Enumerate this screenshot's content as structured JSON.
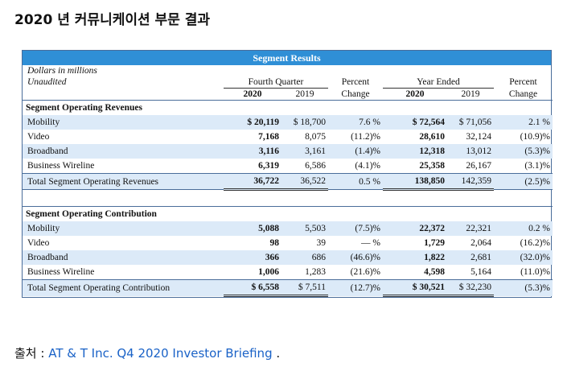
{
  "title": "2020 년 커뮤니케이션 부문 결과",
  "table": {
    "caption": "Segment Results",
    "header": {
      "left": [
        "Dollars in millions",
        "Unaudited"
      ],
      "fourth_quarter": "Fourth Quarter",
      "year_ended": "Year Ended",
      "percent": "Percent",
      "change": "Change",
      "years": [
        "2020",
        "2019"
      ]
    },
    "sections": [
      {
        "heading": "Segment Operating Revenues",
        "rows": [
          {
            "label": "Mobility",
            "values": [
              "$ 20,119",
              "$ 18,700",
              "7.6 %",
              "$ 72,564",
              "$ 71,056",
              "2.1 %"
            ]
          },
          {
            "label": "Video",
            "values": [
              "7,168",
              "8,075",
              "(11.2)%",
              "28,610",
              "32,124",
              "(10.9)%"
            ]
          },
          {
            "label": "Broadband",
            "values": [
              "3,116",
              "3,161",
              "(1.4)%",
              "12,318",
              "13,012",
              "(5.3)%"
            ]
          },
          {
            "label": "Business Wireline",
            "values": [
              "6,319",
              "6,586",
              "(4.1)%",
              "25,358",
              "26,167",
              "(3.1)%"
            ]
          }
        ],
        "total": {
          "label": "Total Segment Operating Revenues",
          "values": [
            "36,722",
            "36,522",
            "0.5 %",
            "138,850",
            "142,359",
            "(2.5)%"
          ]
        }
      },
      {
        "heading": "Segment Operating Contribution",
        "rows": [
          {
            "label": "Mobility",
            "values": [
              "5,088",
              "5,503",
              "(7.5)%",
              "22,372",
              "22,321",
              "0.2 %"
            ]
          },
          {
            "label": "Video",
            "values": [
              "98",
              "39",
              "— %",
              "1,729",
              "2,064",
              "(16.2)%"
            ]
          },
          {
            "label": "Broadband",
            "values": [
              "366",
              "686",
              "(46.6)%",
              "1,822",
              "2,681",
              "(32.0)%"
            ]
          },
          {
            "label": "Business Wireline",
            "values": [
              "1,006",
              "1,283",
              "(21.6)%",
              "4,598",
              "5,164",
              "(11.0)%"
            ]
          }
        ],
        "total": {
          "label": "Total Segment Operating Contribution",
          "values": [
            "$ 6,558",
            "$ 7,511",
            "(12.7)%",
            "$ 30,521",
            "$ 32,230",
            "(5.3)%"
          ]
        }
      }
    ]
  },
  "source": {
    "prefix": "출처 :",
    "link": "AT & T Inc. Q4 2020 Investor Briefing",
    "suffix": "."
  }
}
